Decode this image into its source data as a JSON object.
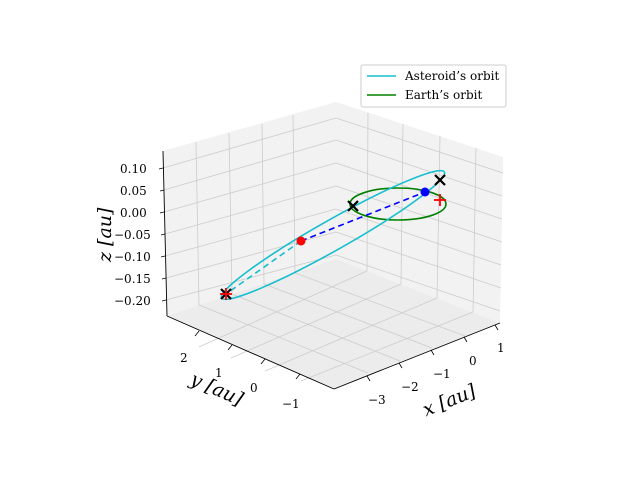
{
  "chart_data": {
    "type": "line",
    "projection": "3d",
    "title": "",
    "xlabel": "x [au]",
    "ylabel": "y [au]",
    "zlabel": "z [au]",
    "xticks": [
      "−3",
      "−2",
      "−1",
      "0",
      "1"
    ],
    "yticks": [
      "−1",
      "0",
      "1",
      "2"
    ],
    "zticks": [
      "0.10",
      "0.05",
      "0.00",
      "−0.05",
      "−0.10",
      "−0.15",
      "−0.20"
    ],
    "grid": true,
    "legend_position": "top-right",
    "series": [
      {
        "name": "Asteroid’s orbit",
        "color": "#17becf"
      },
      {
        "name": "Earth’s orbit",
        "color": "#008000"
      }
    ],
    "markers": [
      {
        "kind": "dot",
        "color": "#ff0000"
      },
      {
        "kind": "dot",
        "color": "#0000ff"
      },
      {
        "kind": "x",
        "color": "#000000"
      },
      {
        "kind": "x",
        "color": "#000000"
      },
      {
        "kind": "x",
        "color": "#000000"
      },
      {
        "kind": "plus",
        "color": "#ff0000"
      },
      {
        "kind": "plus",
        "color": "#ff0000"
      }
    ],
    "connector_color": "#0000ff"
  }
}
